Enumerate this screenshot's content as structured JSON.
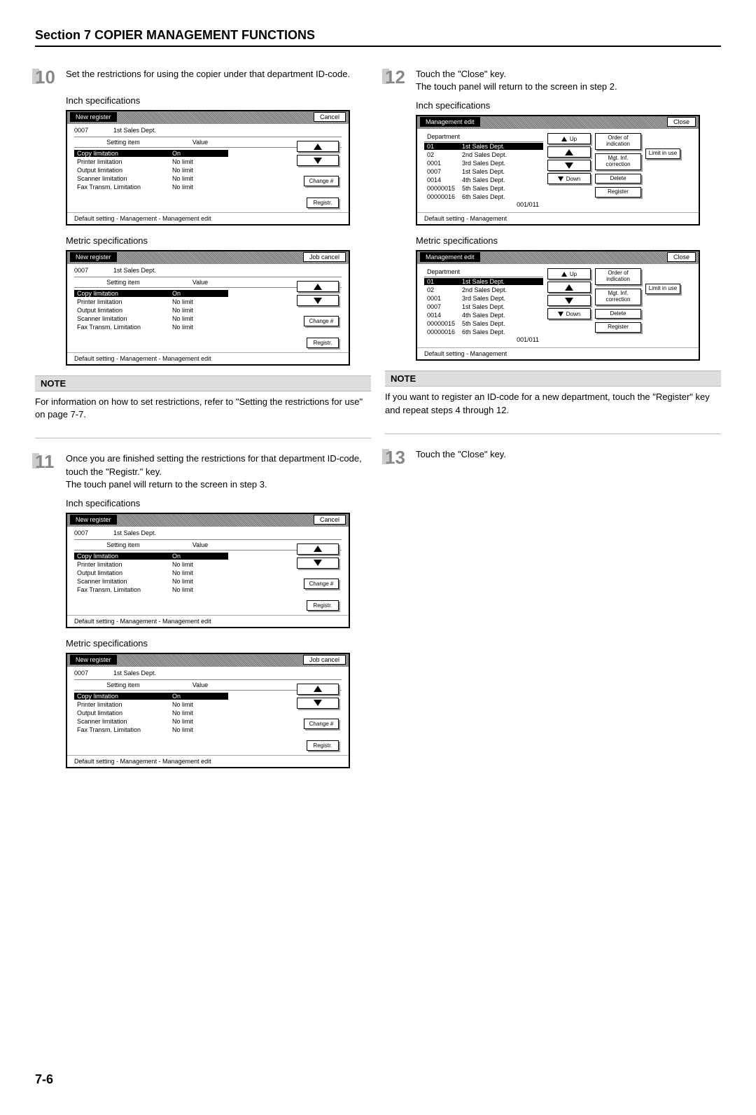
{
  "header": {
    "title": "Section 7  COPIER MANAGEMENT FUNCTIONS"
  },
  "pageNum": "7-6",
  "common": {
    "inch": "Inch specifications",
    "metric": "Metric specifications",
    "note": "NOTE"
  },
  "register_panel": {
    "title": "New register",
    "cancel_inch": "Cancel",
    "cancel_metric": "Job cancel",
    "dept_code": "0007",
    "dept_name": "1st Sales Dept.",
    "th_item": "Setting item",
    "th_value": "Value",
    "rows": [
      {
        "item": "Copy limitation",
        "value": "On",
        "selected": true
      },
      {
        "item": "Printer limitation",
        "value": "No limit"
      },
      {
        "item": "Output limitation",
        "value": "No limit"
      },
      {
        "item": "Scanner limitation",
        "value": "No limit"
      },
      {
        "item": "Fax Transm. Limitation",
        "value": "No limit"
      }
    ],
    "change": "Change #",
    "registr": "Registr.",
    "footer": "Default setting - Management - Management edit"
  },
  "mgmt_panel": {
    "title": "Management edit",
    "close": "Close",
    "dept_head": "Department",
    "rows": [
      {
        "id": "01",
        "name": "1st Sales Dept.",
        "selected": true
      },
      {
        "id": "02",
        "name": "2nd Sales Dept."
      },
      {
        "id": "0001",
        "name": "3rd Sales Dept."
      },
      {
        "id": "0007",
        "name": "1st Sales Dept."
      },
      {
        "id": "0014",
        "name": "4th Sales Dept."
      },
      {
        "id": "00000015",
        "name": "5th Sales Dept."
      },
      {
        "id": "00000016",
        "name": "6th Sales Dept."
      }
    ],
    "counter": "001/011",
    "up": "Up",
    "down": "Down",
    "order": "Order of indication",
    "mgtinf": "Mgt. Inf. correction",
    "delete": "Delete",
    "register": "Register",
    "limit": "Limit in use",
    "footer": "Default setting - Management"
  },
  "steps": {
    "s10": {
      "num": "10",
      "text": "Set the restrictions for using the copier under that department ID-code."
    },
    "s11": {
      "num": "11",
      "text": "Once you are finished setting the restrictions for that department ID-code, touch the \"Registr.\" key.",
      "text2": "The touch panel will return to the screen in step 3."
    },
    "s12": {
      "num": "12",
      "text": "Touch the \"Close\" key.",
      "text2": "The touch panel will return to the screen in step 2."
    },
    "s13": {
      "num": "13",
      "text": "Touch the \"Close\" key."
    }
  },
  "notes": {
    "left": "For information on how to set restrictions, refer to \"Setting the restrictions for use\" on page 7-7.",
    "right": "If you want to register an ID-code for a new department, touch the \"Register\" key and repeat steps 4 through 12."
  }
}
